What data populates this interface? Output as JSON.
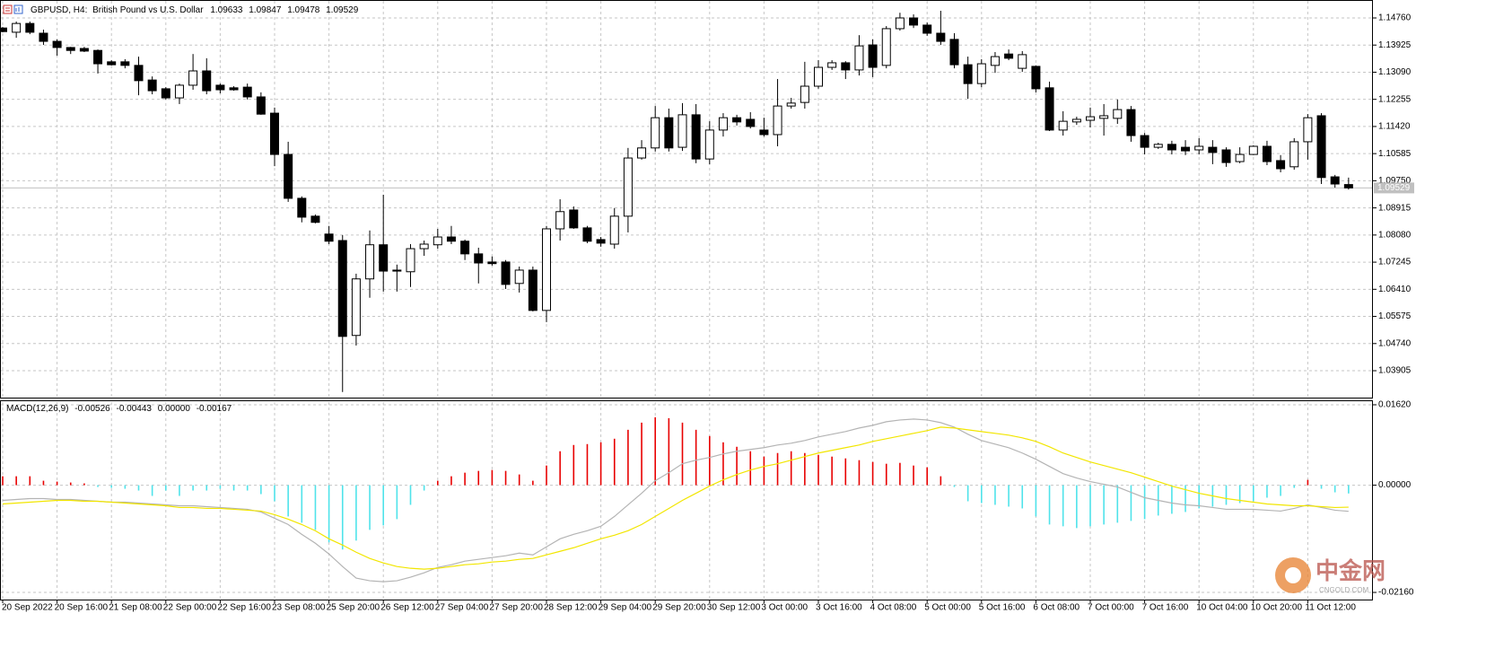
{
  "chart_data": [
    {
      "type": "candlestick",
      "title": "GBPUSD, H4:",
      "subtitle": "British Pound vs U.S. Dollar",
      "categories": [
        "20 Sep 2022",
        null,
        null,
        null,
        "20 Sep 16:00",
        null,
        null,
        null,
        "21 Sep 08:00",
        null,
        null,
        null,
        "22 Sep 00:00",
        null,
        null,
        null,
        "22 Sep 16:00",
        null,
        null,
        null,
        "23 Sep 08:00",
        null,
        null,
        null,
        "25 Sep 20:00",
        null,
        null,
        null,
        "26 Sep 12:00",
        null,
        null,
        null,
        "27 Sep 04:00",
        null,
        null,
        null,
        "27 Sep 20:00",
        null,
        null,
        null,
        "28 Sep 12:00",
        null,
        null,
        null,
        "29 Sep 04:00",
        null,
        null,
        null,
        "29 Sep 20:00",
        null,
        null,
        null,
        "30 Sep 12:00",
        null,
        null,
        null,
        "3 Oct 00:00",
        null,
        null,
        null,
        "3 Oct 16:00",
        null,
        null,
        null,
        "4 Oct 08:00",
        null,
        null,
        null,
        "5 Oct 00:00",
        null,
        null,
        null,
        "5 Oct 16:00",
        null,
        null,
        null,
        "6 Oct 08:00",
        null,
        null,
        null,
        "7 Oct 00:00",
        null,
        null,
        null,
        "7 Oct 16:00",
        null,
        null,
        null,
        "10 Oct 04:00",
        null,
        null,
        null,
        "10 Oct 20:00",
        null,
        null,
        null,
        "11 Oct 12:00",
        null,
        null,
        null
      ],
      "open": [
        1.1445,
        1.1432,
        1.1459,
        1.1429,
        1.1404,
        1.1385,
        1.1382,
        1.1376,
        1.1341,
        1.1341,
        1.133,
        1.1285,
        1.1258,
        1.123,
        1.1269,
        1.1313,
        1.1269,
        1.1261,
        1.1263,
        1.1233,
        1.1183,
        1.1056,
        1.0921,
        1.0866,
        1.0811,
        1.0791,
        1.0499,
        1.0673,
        1.0778,
        1.07,
        1.0695,
        1.0766,
        1.0778,
        1.0802,
        1.0789,
        1.075,
        1.0725,
        1.0725,
        1.0659,
        1.07,
        1.0576,
        1.0827,
        1.0885,
        1.083,
        1.0794,
        1.078,
        1.0866,
        1.1045,
        1.1076,
        1.1169,
        1.1078,
        1.1178,
        1.1042,
        1.1131,
        1.1169,
        1.1164,
        1.1131,
        1.1117,
        1.1205,
        1.1216,
        1.1266,
        1.1324,
        1.1338,
        1.1316,
        1.1393,
        1.133,
        1.1443,
        1.1476,
        1.1454,
        1.1429,
        1.141,
        1.1332,
        1.1274,
        1.133,
        1.1365,
        1.1321,
        1.1327,
        1.1261,
        1.1131,
        1.1156,
        1.1161,
        1.1167,
        1.1167,
        1.1194,
        1.1114,
        1.1078,
        1.1087,
        1.1078,
        1.107,
        1.1078,
        1.107,
        1.1034,
        1.1056,
        1.1081,
        1.1037,
        1.1018,
        1.1095,
        1.1175,
        1.0987,
        1.09633
      ],
      "high": [
        1.1448,
        1.1465,
        1.1465,
        1.144,
        1.141,
        1.1387,
        1.1387,
        1.1379,
        1.1346,
        1.1349,
        1.1357,
        1.1296,
        1.1263,
        1.1274,
        1.1365,
        1.1352,
        1.1274,
        1.1266,
        1.1274,
        1.1247,
        1.12,
        1.1095,
        1.0927,
        1.0871,
        1.0836,
        1.0808,
        1.0689,
        1.0822,
        1.0932,
        1.0717,
        1.078,
        1.0791,
        1.0827,
        1.0836,
        1.0794,
        1.0769,
        1.0742,
        1.0731,
        1.0711,
        1.0711,
        1.0836,
        1.0918,
        1.0896,
        1.0836,
        1.0802,
        1.0891,
        1.1076,
        1.11,
        1.1205,
        1.1197,
        1.1214,
        1.1211,
        1.1158,
        1.1183,
        1.1178,
        1.1186,
        1.1169,
        1.1288,
        1.123,
        1.1341,
        1.1346,
        1.1346,
        1.1343,
        1.1423,
        1.141,
        1.1451,
        1.1492,
        1.1487,
        1.1462,
        1.1498,
        1.1429,
        1.1357,
        1.1349,
        1.1371,
        1.1379,
        1.1374,
        1.133,
        1.128,
        1.1189,
        1.1172,
        1.12,
        1.1211,
        1.1225,
        1.1205,
        1.1122,
        1.1092,
        1.1098,
        1.11,
        1.1106,
        1.11,
        1.1078,
        1.1078,
        1.1084,
        1.1098,
        1.1054,
        1.1106,
        1.118,
        1.1183,
        1.0993,
        1.09847
      ],
      "low": [
        1.1432,
        1.1415,
        1.1426,
        1.1393,
        1.136,
        1.1365,
        1.1371,
        1.1305,
        1.133,
        1.1321,
        1.1238,
        1.1241,
        1.1225,
        1.1211,
        1.1255,
        1.1241,
        1.1244,
        1.1252,
        1.1225,
        1.1178,
        1.102,
        1.091,
        1.0847,
        1.0844,
        1.078,
        1.0325,
        1.0468,
        1.0615,
        1.0634,
        1.0634,
        1.0648,
        1.0744,
        1.0766,
        1.078,
        1.0731,
        1.0659,
        1.0714,
        1.0642,
        1.0631,
        1.0573,
        1.054,
        1.0791,
        1.0827,
        1.0783,
        1.0772,
        1.0766,
        1.0816,
        1.104,
        1.1065,
        1.1065,
        1.1067,
        1.1029,
        1.1026,
        1.1111,
        1.1145,
        1.1136,
        1.1111,
        1.1081,
        1.1197,
        1.1197,
        1.1258,
        1.1316,
        1.1288,
        1.1299,
        1.1294,
        1.1321,
        1.1437,
        1.1445,
        1.1421,
        1.1393,
        1.1321,
        1.1227,
        1.1263,
        1.1307,
        1.1346,
        1.131,
        1.1247,
        1.1128,
        1.1114,
        1.1147,
        1.1139,
        1.1114,
        1.115,
        1.1095,
        1.1056,
        1.1073,
        1.1056,
        1.1054,
        1.1056,
        1.1026,
        1.1018,
        1.1029,
        1.1054,
        1.1023,
        1.1001,
        1.1009,
        1.104,
        1.0965,
        1.0954,
        1.09478
      ],
      "close": [
        1.1434,
        1.1459,
        1.1432,
        1.1404,
        1.1385,
        1.1376,
        1.1374,
        1.1335,
        1.1332,
        1.133,
        1.1283,
        1.1252,
        1.123,
        1.1269,
        1.1313,
        1.1252,
        1.1255,
        1.1255,
        1.1233,
        1.118,
        1.1056,
        1.0921,
        1.0863,
        1.0847,
        1.0789,
        1.0496,
        1.0673,
        1.0778,
        1.0697,
        1.0697,
        1.0766,
        1.078,
        1.0802,
        1.0789,
        1.075,
        1.0722,
        1.072,
        1.0656,
        1.07,
        1.0576,
        1.0827,
        1.088,
        1.083,
        1.0789,
        1.0783,
        1.0866,
        1.1045,
        1.1076,
        1.1169,
        1.1076,
        1.1178,
        1.1042,
        1.1131,
        1.1169,
        1.1156,
        1.1142,
        1.1117,
        1.1205,
        1.1214,
        1.1266,
        1.1324,
        1.1338,
        1.1316,
        1.139,
        1.1324,
        1.1443,
        1.1476,
        1.1454,
        1.1429,
        1.1404,
        1.1332,
        1.1274,
        1.1335,
        1.1357,
        1.1352,
        1.1363,
        1.1258,
        1.1131,
        1.1158,
        1.1164,
        1.1172,
        1.1175,
        1.1194,
        1.1114,
        1.1078,
        1.1087,
        1.107,
        1.1067,
        1.1081,
        1.1062,
        1.1031,
        1.1056,
        1.1081,
        1.1034,
        1.1012,
        1.1095,
        1.1169,
        1.0985,
        1.0965,
        1.09529
      ],
      "up_color": "#ffffff",
      "down_color": "#000000",
      "ylim": [
        1.03077,
        1.15312
      ],
      "yticks": [
        {
          "value": 1.1476,
          "label": "1.14760"
        },
        1.13925,
        {
          "value": 1.1309,
          "label": "1.13090"
        },
        1.12255,
        {
          "value": 1.1142,
          "label": "1.11420"
        },
        1.10585,
        {
          "value": 1.0975,
          "label": "1.09750"
        },
        1.08915,
        {
          "value": 1.0808,
          "label": "1.08080"
        },
        1.07245,
        {
          "value": 1.0641,
          "label": "1.06410"
        },
        1.05575,
        {
          "value": 1.0474,
          "label": "1.04740"
        },
        1.03905
      ],
      "grid": true,
      "last_price_line": true
    },
    {
      "type": "macd",
      "title": "MACD(12,26,9)",
      "buffer_value": {
        "value": 0,
        "label": "0.00000"
      },
      "histogram": {
        "positive_color": "#e80000",
        "negative_color": "#4fe3ea",
        "values": [
          0.0018,
          0.0018,
          0.0018,
          0.0009,
          0.00072,
          0.00054,
          0.00036,
          -0.00036,
          -0.00054,
          -0.00072,
          -0.00108,
          -0.00216,
          -0.00108,
          -0.00216,
          -0.00108,
          -0.00108,
          -0.00072,
          -0.00108,
          -0.00108,
          -0.0018,
          -0.00324,
          -0.0063,
          -0.00756,
          -0.009,
          -0.01152,
          -0.01296,
          -0.01116,
          -0.009,
          -0.0081,
          -0.00684,
          -0.00396,
          -0.00108,
          0.0009,
          0.0018,
          0.00252,
          0.00288,
          0.00306,
          0.00288,
          0.00216,
          0.0009,
          0.00396,
          0.00684,
          0.0081,
          0.00828,
          0.00864,
          0.00936,
          0.01116,
          0.0126,
          0.01368,
          0.0135,
          0.0126,
          0.01116,
          0.0099,
          0.00864,
          0.00774,
          0.00684,
          0.00576,
          0.00648,
          0.00684,
          0.00648,
          0.00612,
          0.00576,
          0.0054,
          0.00504,
          0.00468,
          0.00432,
          0.0045,
          0.00396,
          0.0036,
          0.0018,
          -0.00036,
          -0.00324,
          -0.0036,
          -0.00396,
          -0.00432,
          -0.00468,
          -0.0063,
          -0.00792,
          -0.00828,
          -0.00864,
          -0.00828,
          -0.00792,
          -0.00756,
          -0.0072,
          -0.00684,
          -0.00612,
          -0.00576,
          -0.0054,
          -0.00468,
          -0.00432,
          -0.00396,
          -0.0036,
          -0.00324,
          -0.00252,
          -0.00216,
          -0.00054,
          0.00108,
          -0.00072,
          -0.00144,
          -0.00167
        ]
      },
      "series": [
        {
          "color": "#b4b4b4",
          "values": [
            -0.00306,
            -0.00288,
            -0.0027,
            -0.0027,
            -0.00288,
            -0.00288,
            -0.00306,
            -0.00324,
            -0.00342,
            -0.00342,
            -0.0036,
            -0.00378,
            -0.00396,
            -0.00414,
            -0.00414,
            -0.00432,
            -0.0045,
            -0.00468,
            -0.00486,
            -0.0054,
            -0.00666,
            -0.00792,
            -0.0099,
            -0.0117,
            -0.01386,
            -0.01638,
            -0.01872,
            -0.01926,
            -0.01944,
            -0.01926,
            -0.01854,
            -0.01764,
            -0.01656,
            -0.01602,
            -0.0153,
            -0.01494,
            -0.01458,
            -0.01422,
            -0.01368,
            -0.01404,
            -0.01242,
            -0.0108,
            -0.0099,
            -0.00918,
            -0.00828,
            -0.0063,
            -0.00396,
            -0.00162,
            0.0009,
            0.00252,
            0.00432,
            0.00504,
            0.00558,
            0.0063,
            0.00684,
            0.0072,
            0.00756,
            0.0081,
            0.00846,
            0.009,
            0.00972,
            0.01026,
            0.0108,
            0.01152,
            0.01206,
            0.01278,
            0.01314,
            0.01332,
            0.01314,
            0.0126,
            0.0117,
            0.01026,
            0.009,
            0.00828,
            0.00756,
            0.00648,
            0.00522,
            0.00378,
            0.00234,
            0.00144,
            0.00072,
            0.00018,
            -0.00036,
            -0.00144,
            -0.00252,
            -0.00306,
            -0.0036,
            -0.00396,
            -0.00414,
            -0.0045,
            -0.00486,
            -0.00486,
            -0.00486,
            -0.00504,
            -0.00522,
            -0.00468,
            -0.00396,
            -0.0045,
            -0.00504,
            -0.00526
          ]
        },
        {
          "color": "#f2e600",
          "values": [
            -0.00378,
            -0.0036,
            -0.00342,
            -0.00324,
            -0.00306,
            -0.00306,
            -0.00324,
            -0.00324,
            -0.00342,
            -0.0036,
            -0.00378,
            -0.00396,
            -0.00414,
            -0.0045,
            -0.0045,
            -0.00468,
            -0.00468,
            -0.00486,
            -0.00504,
            -0.00522,
            -0.00594,
            -0.00684,
            -0.00792,
            -0.00918,
            -0.0108,
            -0.01206,
            -0.0135,
            -0.01476,
            -0.01566,
            -0.01638,
            -0.01674,
            -0.01692,
            -0.01674,
            -0.01638,
            -0.01602,
            -0.01584,
            -0.01548,
            -0.0153,
            -0.01494,
            -0.01476,
            -0.01404,
            -0.01332,
            -0.0126,
            -0.0117,
            -0.0108,
            -0.01008,
            -0.00918,
            -0.00792,
            -0.0063,
            -0.00468,
            -0.00306,
            -0.00162,
            -0.00018,
            0.00108,
            0.00216,
            0.00306,
            0.00378,
            0.00432,
            0.00504,
            0.00576,
            0.00648,
            0.00702,
            0.00756,
            0.0081,
            0.00882,
            0.00936,
            0.0099,
            0.01044,
            0.01098,
            0.0117,
            0.01152,
            0.01116,
            0.0108,
            0.01044,
            0.01008,
            0.00954,
            0.00882,
            0.00774,
            0.00648,
            0.00558,
            0.00468,
            0.00396,
            0.00324,
            0.00252,
            0.00162,
            0.00072,
            -0.00018,
            -0.0009,
            -0.00162,
            -0.00216,
            -0.0027,
            -0.00306,
            -0.00342,
            -0.00378,
            -0.00396,
            -0.00414,
            -0.00414,
            -0.00432,
            -0.0045,
            -0.00443
          ]
        }
      ],
      "ylim": [
        -0.02304,
        0.01692
      ],
      "yticks": [
        {
          "value": 0.0162,
          "label": "0.01620"
        },
        {
          "value": 0,
          "label": "0.00000"
        },
        {
          "value": -0.0216,
          "label": "-0.02160"
        }
      ],
      "grid": true
    }
  ],
  "watermark": {
    "text": "中金网",
    "subtext": "CNGOLD.COM"
  }
}
